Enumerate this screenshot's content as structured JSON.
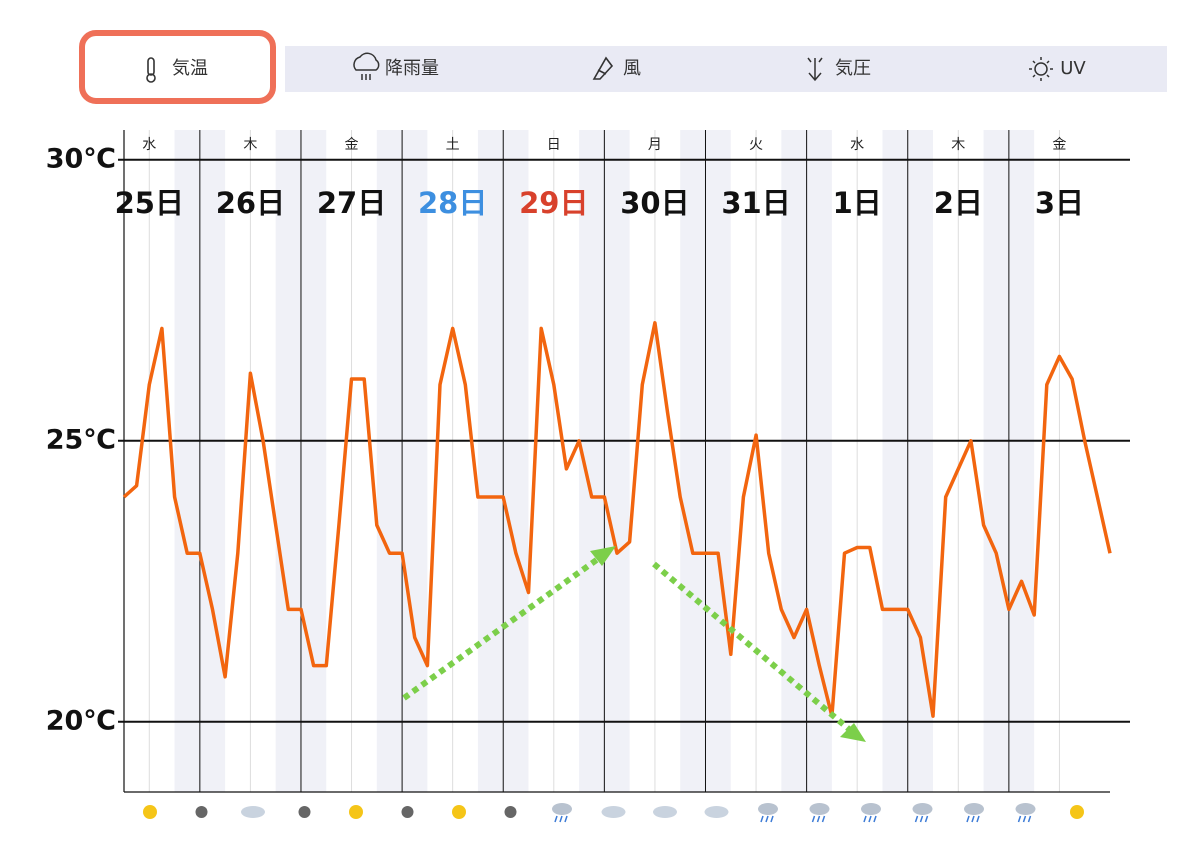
{
  "tabs": [
    "気温",
    "降雨量",
    "風",
    "気圧",
    "UV"
  ],
  "chart_data": {
    "type": "line",
    "days": [
      {
        "weekday": "水",
        "date": "25日",
        "color": "#111111"
      },
      {
        "weekday": "木",
        "date": "26日",
        "color": "#111111"
      },
      {
        "weekday": "金",
        "date": "27日",
        "color": "#111111"
      },
      {
        "weekday": "土",
        "date": "28日",
        "color": "#3d8fe0"
      },
      {
        "weekday": "日",
        "date": "29日",
        "color": "#d8412c"
      },
      {
        "weekday": "月",
        "date": "30日",
        "color": "#111111"
      },
      {
        "weekday": "火",
        "date": "31日",
        "color": "#111111"
      },
      {
        "weekday": "水",
        "date": "1日",
        "color": "#111111"
      },
      {
        "weekday": "木",
        "date": "2日",
        "color": "#111111"
      },
      {
        "weekday": "金",
        "date": "3日",
        "color": "#111111"
      }
    ],
    "values": [
      24.0,
      24.2,
      26.0,
      27.0,
      24.0,
      23.0,
      23.0,
      22.0,
      20.8,
      23.0,
      26.2,
      25.0,
      23.5,
      22.0,
      22.0,
      21.0,
      21.0,
      23.5,
      26.1,
      26.1,
      23.5,
      23.0,
      23.0,
      21.5,
      21.0,
      26.0,
      27.0,
      26.0,
      24.0,
      24.0,
      24.0,
      23.0,
      22.3,
      27.0,
      26.0,
      24.5,
      25.0,
      24.0,
      24.0,
      23.0,
      23.2,
      26.0,
      27.1,
      25.5,
      24.0,
      23.0,
      23.0,
      23.0,
      21.2,
      24.0,
      25.1,
      23.0,
      22.0,
      21.5,
      22.0,
      21.0,
      20.1,
      23.0,
      23.1,
      23.1,
      22.0,
      22.0,
      22.0,
      21.5,
      20.1,
      24.0,
      24.5,
      25.0,
      23.5,
      23.0,
      22.0,
      22.5,
      21.9,
      26.0,
      26.5,
      26.1,
      25.0,
      24.0,
      23.0
    ],
    "color": "#f2650f",
    "ylim": [
      18.75,
      30.53
    ],
    "yticks": [
      {
        "value": 20,
        "label": "20℃"
      },
      {
        "value": 25,
        "label": "25℃"
      },
      {
        "value": 30,
        "label": "30℃"
      }
    ],
    "grid": true
  }
}
